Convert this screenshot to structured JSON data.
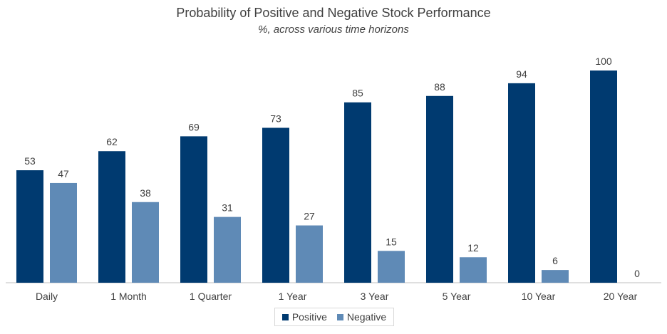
{
  "chart_data": {
    "type": "bar",
    "title": "Probability of Positive and Negative Stock Performance",
    "subtitle": "%, across various time horizons",
    "categories": [
      "Daily",
      "1 Month",
      "1 Quarter",
      "1 Year",
      "3 Year",
      "5 Year",
      "10 Year",
      "20 Year"
    ],
    "series": [
      {
        "name": "Positive",
        "color": "#003a70",
        "values": [
          53,
          62,
          69,
          73,
          85,
          88,
          94,
          100
        ]
      },
      {
        "name": "Negative",
        "color": "#5f8ab6",
        "values": [
          47,
          38,
          31,
          27,
          15,
          12,
          6,
          0
        ]
      }
    ],
    "xlabel": "",
    "ylabel": "",
    "ylim": [
      0,
      100
    ],
    "grid": false,
    "legend_position": "bottom"
  }
}
